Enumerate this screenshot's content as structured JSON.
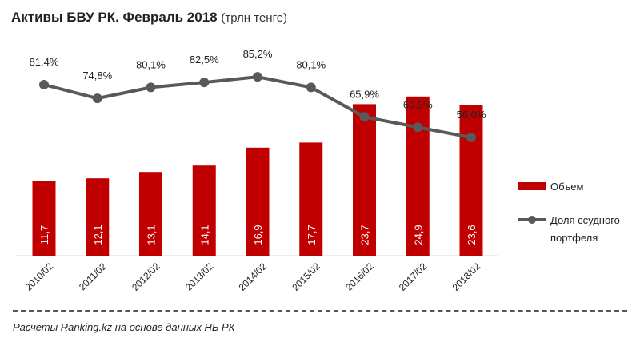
{
  "title": "Активы БВУ РК. Февраль 2018",
  "subtitle": "(трлн тенге)",
  "footer": "Расчеты Ranking.kz на основе данных НБ РК",
  "colors": {
    "bar": "#C00000",
    "line": "#595959"
  },
  "chart_data": {
    "type": "bar+line",
    "categories": [
      "2010/02",
      "2011/02",
      "2012/02",
      "2013/02",
      "2014/02",
      "2015/02",
      "2016/02",
      "2017/02",
      "2018/02"
    ],
    "series": [
      {
        "name": "Объем",
        "type": "bar",
        "values": [
          11.7,
          12.1,
          13.1,
          14.1,
          16.9,
          17.7,
          23.7,
          24.9,
          23.6
        ],
        "labels": [
          "11,7",
          "12,1",
          "13,1",
          "14,1",
          "16,9",
          "17,7",
          "23,7",
          "24,9",
          "23,6"
        ]
      },
      {
        "name": "Доля ссудного портфеля",
        "type": "line",
        "values": [
          81.4,
          74.8,
          80.1,
          82.5,
          85.2,
          80.1,
          65.9,
          60.9,
          56.0
        ],
        "labels": [
          "81,4%",
          "74,8%",
          "80,1%",
          "82,5%",
          "85,2%",
          "80,1%",
          "65,9%",
          "60,9%",
          "56,0%"
        ]
      }
    ],
    "legend": [
      {
        "label": "Объем"
      },
      {
        "label": "Доля ссудного портфеля"
      }
    ],
    "legend_position": "right"
  }
}
